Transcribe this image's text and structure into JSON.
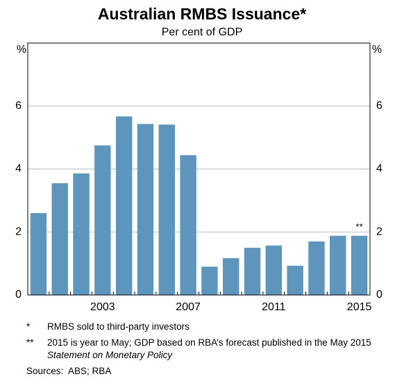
{
  "chart_data": {
    "type": "bar",
    "title": "Australian RMBS Issuance*",
    "subtitle": "Per cent of GDP",
    "y_unit": "%",
    "categories": [
      null,
      null,
      null,
      "2003",
      null,
      null,
      null,
      "2007",
      null,
      null,
      null,
      "2011",
      null,
      null,
      null,
      "2015"
    ],
    "values": [
      2.6,
      3.55,
      3.86,
      4.75,
      5.67,
      5.43,
      5.41,
      4.44,
      0.9,
      1.17,
      1.5,
      1.57,
      0.93,
      1.7,
      1.88,
      1.88
    ],
    "color": "#5d95bd",
    "ylim": [
      0,
      8
    ],
    "yticks": [
      0,
      2,
      4,
      6
    ],
    "grid": true,
    "annotation": "**"
  },
  "footnotes": [
    {
      "marker": "*",
      "text": "RMBS sold to third-party investors"
    },
    {
      "marker": "**",
      "text": "2015 is year to May; GDP based on RBA’s forecast published in the May 2015",
      "italic": "Statement on Monetary Policy"
    }
  ],
  "sources": {
    "label": "Sources:",
    "text": "ABS; RBA"
  }
}
